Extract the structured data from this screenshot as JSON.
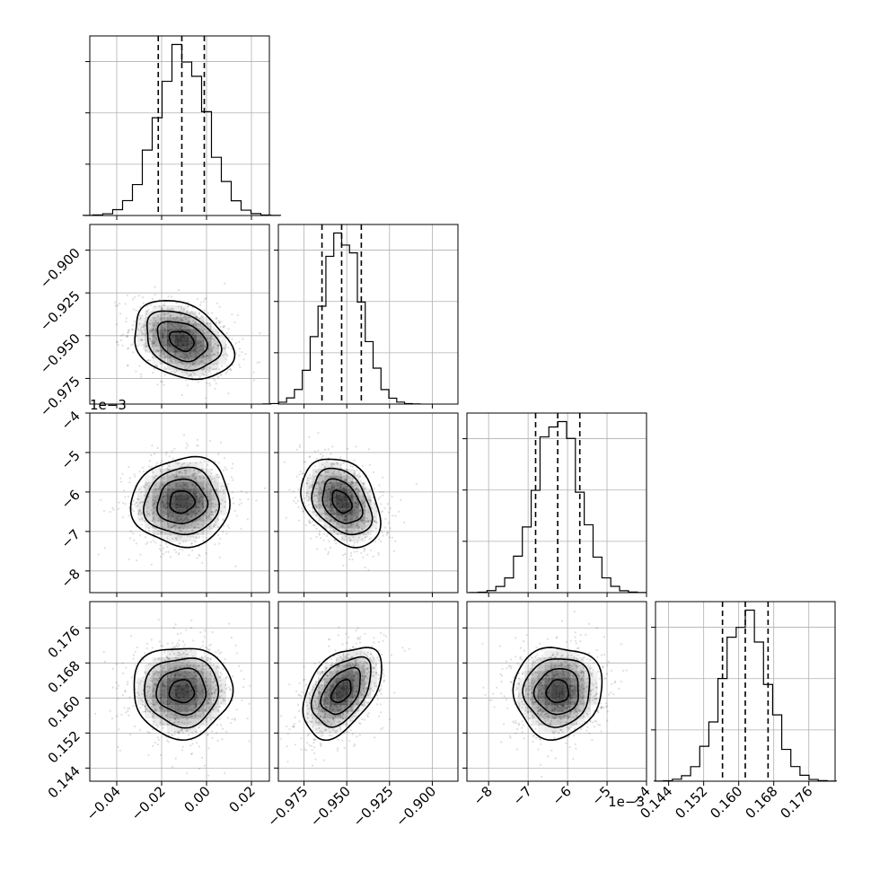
{
  "chart_data": {
    "type": "corner",
    "n_params": 4,
    "params": [
      {
        "index": 0,
        "ticks": [
          -0.04,
          -0.02,
          0.0,
          0.02
        ],
        "tick_labels": [
          "−0.04",
          "−0.02",
          "0.00",
          "0.02"
        ],
        "range": [
          -0.052,
          0.028
        ],
        "exponent": "",
        "mean": -0.011,
        "sigma": 0.011,
        "quantiles": [
          -0.0215,
          -0.011,
          -0.001
        ]
      },
      {
        "index": 1,
        "ticks": [
          -0.975,
          -0.95,
          -0.925,
          -0.9
        ],
        "tick_labels": [
          "−0.975",
          "−0.950",
          "−0.925",
          "−0.900"
        ],
        "range": [
          -0.99,
          -0.885
        ],
        "exponent": "",
        "mean": -0.953,
        "sigma": 0.0115,
        "quantiles": [
          -0.9645,
          -0.953,
          -0.9415
        ]
      },
      {
        "index": 2,
        "ticks": [
          -8,
          -7,
          -6,
          -5,
          -4
        ],
        "tick_labels": [
          "−8",
          "−7",
          "−6",
          "−5",
          "−4"
        ],
        "range": [
          -8.55,
          -4.0
        ],
        "exponent": "1e−3",
        "mean": -6.25,
        "sigma": 0.56,
        "quantiles": [
          -6.81,
          -6.25,
          -5.69
        ]
      },
      {
        "index": 3,
        "ticks": [
          0.144,
          0.152,
          0.16,
          0.168,
          0.176
        ],
        "tick_labels": [
          "0.144",
          "0.152",
          "0.160",
          "0.168",
          "0.176"
        ],
        "range": [
          0.141,
          0.182
        ],
        "exponent": "",
        "mean": 0.1615,
        "sigma": 0.0052,
        "quantiles": [
          0.1563,
          0.1615,
          0.1667
        ]
      }
    ],
    "pair_correlations": [
      {
        "i": 1,
        "j": 0,
        "rho": -0.3
      },
      {
        "i": 2,
        "j": 0,
        "rho": 0.05
      },
      {
        "i": 2,
        "j": 1,
        "rho": -0.35
      },
      {
        "i": 3,
        "j": 0,
        "rho": 0.0
      },
      {
        "i": 3,
        "j": 1,
        "rho": 0.45
      },
      {
        "i": 3,
        "j": 2,
        "rho": 0.05
      }
    ],
    "contour_levels_sigma": [
      0.5,
      1.0,
      1.5,
      2.0
    ],
    "grid": true,
    "colors": {
      "line": "#000000",
      "grid": "#b0b0b0",
      "density": "#000000"
    }
  }
}
